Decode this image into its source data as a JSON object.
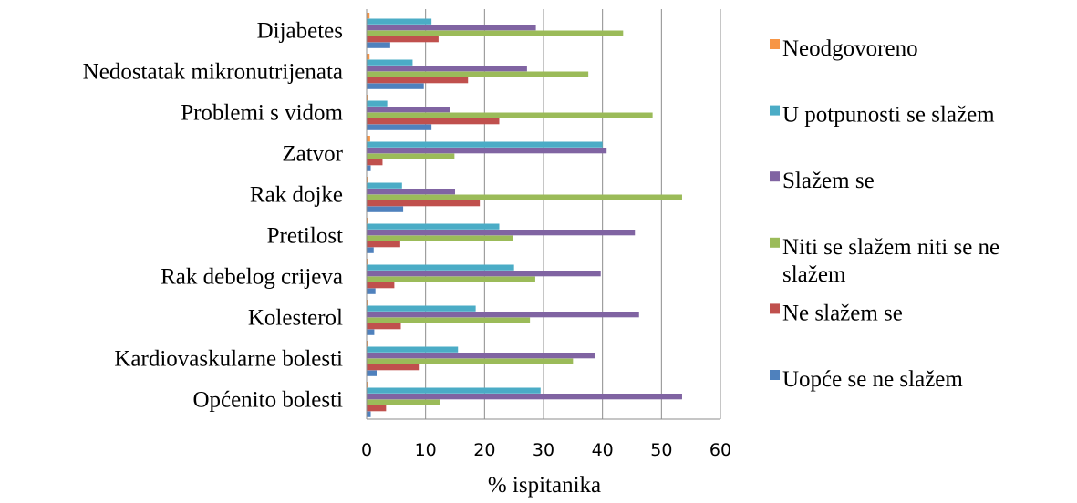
{
  "chart_data": {
    "type": "bar",
    "orientation": "horizontal",
    "categories": [
      "Dijabetes",
      "Nedostatak mikronutrijenata",
      "Problemi s vidom",
      "Zatvor",
      "Rak dojke",
      "Pretilost",
      "Rak debelog crijeva",
      "Kolesterol",
      "Kardiovaskularne bolesti",
      "Općenito bolesti"
    ],
    "series": [
      {
        "name": "Neodgovoreno",
        "color": "#F79646",
        "values": [
          0.5,
          0.5,
          0.3,
          0.6,
          0.3,
          0.3,
          0.3,
          0.3,
          0.3,
          0.3
        ]
      },
      {
        "name": "U potpunosti se slažem",
        "color": "#4BACC6",
        "values": [
          11,
          7.8,
          3.5,
          40,
          6,
          22.5,
          25,
          18.5,
          15.5,
          29.5
        ]
      },
      {
        "name": "Slažem se",
        "color": "#8064A2",
        "values": [
          28.7,
          27.2,
          14.2,
          40.7,
          15,
          45.5,
          39.7,
          46.2,
          38.8,
          53.5
        ]
      },
      {
        "name": "Niti se slažem niti se ne slažem",
        "color": "#9BBB59",
        "values": [
          43.5,
          37.6,
          48.5,
          14.9,
          53.5,
          24.8,
          28.6,
          27.7,
          35,
          12.5
        ]
      },
      {
        "name": "Ne slažem se",
        "color": "#C0504D",
        "values": [
          12.2,
          17.2,
          22.5,
          2.7,
          19.2,
          5.7,
          4.7,
          5.8,
          9,
          3.3
        ]
      },
      {
        "name": "Uopće se ne slažem",
        "color": "#4F81BD",
        "values": [
          4,
          9.7,
          11,
          0.7,
          6.2,
          1.2,
          1.5,
          1.3,
          1.7,
          0.7
        ]
      }
    ],
    "xlabel": "% ispitanika",
    "xlim": [
      0,
      60
    ],
    "xticks": [
      "0",
      "10",
      "20",
      "30",
      "40",
      "50",
      "60"
    ],
    "grid": true,
    "legend": "right",
    "legend_order": [
      "Neodgovoreno",
      "U potpunosti se slažem",
      "Slažem se",
      "Niti se slažem niti se ne slažem",
      "Ne slažem se",
      "Uopće se ne slažem"
    ],
    "legend_lines": {
      "Niti se slažem niti se ne slažem": [
        "Niti se slažem niti se ne",
        "slažem"
      ]
    }
  }
}
